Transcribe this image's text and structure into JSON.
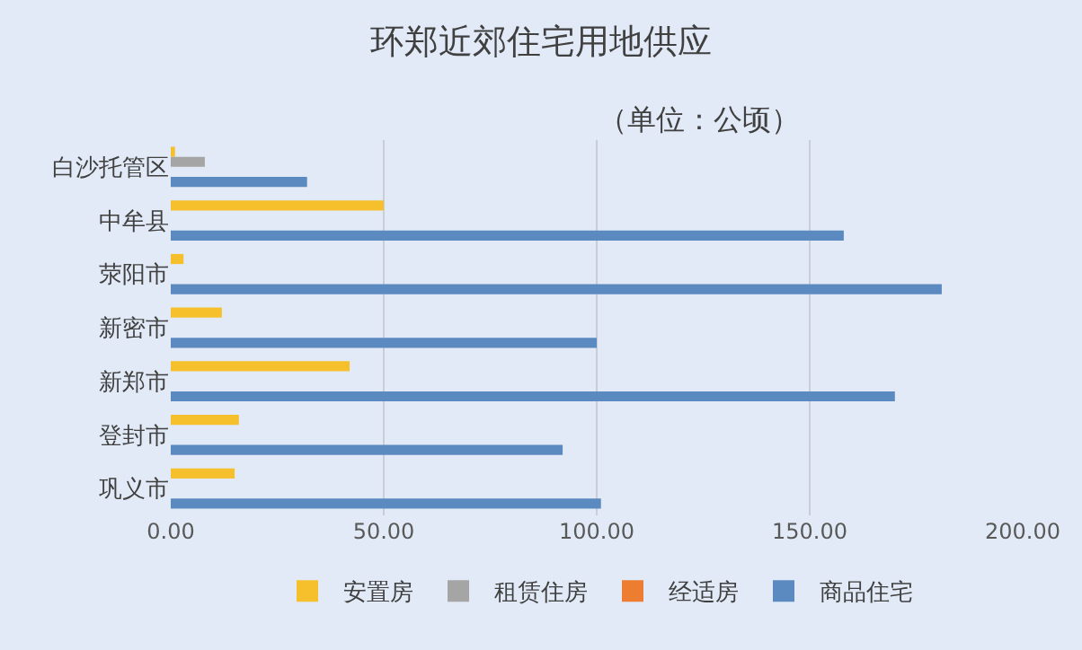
{
  "chart_data": {
    "type": "bar",
    "orientation": "horizontal",
    "title": "环郑近郊住宅用地供应",
    "subtitle": "（单位：公顷）",
    "categories": [
      "白沙托管区",
      "中牟县",
      "荥阳市",
      "新密市",
      "新郑市",
      "登封市",
      "巩义市"
    ],
    "series": [
      {
        "name": "安置房",
        "color": "#f5c02c",
        "values": [
          1,
          50,
          3,
          12,
          42,
          16,
          15
        ]
      },
      {
        "name": "租赁住房",
        "color": "#a5a5a5",
        "values": [
          8,
          0,
          0,
          0,
          0,
          0,
          0
        ]
      },
      {
        "name": "经适房",
        "color": "#ed7d31",
        "values": [
          0,
          0,
          0,
          0,
          0,
          0,
          0
        ]
      },
      {
        "name": "商品住宅",
        "color": "#5b8ac0",
        "values": [
          32,
          158,
          181,
          100,
          170,
          92,
          101
        ]
      }
    ],
    "xlim": [
      0,
      200
    ],
    "xticks": [
      {
        "value": 0,
        "label": "0.00"
      },
      {
        "value": 50,
        "label": "50.00"
      },
      {
        "value": 100,
        "label": "100.00"
      },
      {
        "value": 150,
        "label": "150.00"
      },
      {
        "value": 200,
        "label": "200.00"
      }
    ],
    "grid": "x",
    "legend": "bottom"
  }
}
